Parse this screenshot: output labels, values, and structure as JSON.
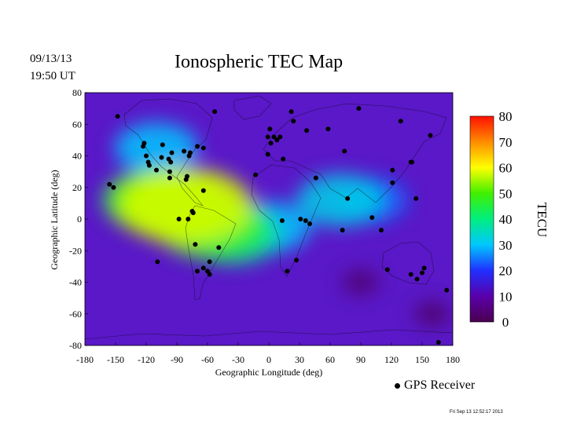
{
  "header": {
    "date": "09/13/13",
    "time": "19:50 UT",
    "title": "Ionospheric TEC Map"
  },
  "legend": {
    "label": "GPS Receiver"
  },
  "footer": {
    "stamp": "Fri Sep 13 12:52:17 2013"
  },
  "chart_data": {
    "type": "heatmap",
    "title": "Ionospheric TEC Map",
    "xlabel": "Geographic Longitude (deg)",
    "ylabel": "Geographic Latitude (deg)",
    "xlim": [
      -180,
      180
    ],
    "ylim": [
      -80,
      80
    ],
    "x_ticks": [
      -180,
      -150,
      -120,
      -90,
      -60,
      -30,
      0,
      30,
      60,
      90,
      120,
      150,
      180
    ],
    "y_ticks": [
      80,
      60,
      40,
      20,
      0,
      -20,
      -40,
      -60,
      -80
    ],
    "colorbar": {
      "label": "TECU",
      "range": [
        0,
        80
      ],
      "ticks": [
        80,
        70,
        60,
        50,
        40,
        30,
        20,
        10,
        0
      ],
      "colors": [
        "#4a0050",
        "#5a00aa",
        "#2030ff",
        "#00c8ff",
        "#00ee80",
        "#40f000",
        "#ffff00",
        "#ff8c00",
        "#ff1000"
      ]
    },
    "tec_regions": [
      {
        "lon": -80,
        "lat": 8,
        "tec": 58
      },
      {
        "lon": -95,
        "lat": 10,
        "tec": 52
      },
      {
        "lon": -55,
        "lat": -5,
        "tec": 46
      },
      {
        "lon": -110,
        "lat": 12,
        "tec": 44
      },
      {
        "lon": -35,
        "lat": -10,
        "tec": 38
      },
      {
        "lon": 0,
        "lat": -5,
        "tec": 30
      },
      {
        "lon": 70,
        "lat": 12,
        "tec": 32
      },
      {
        "lon": -110,
        "lat": 45,
        "tec": 30
      },
      {
        "lon": 100,
        "lat": 12,
        "tec": 24
      },
      {
        "lon": 90,
        "lat": -40,
        "tec": 3
      },
      {
        "lon": 160,
        "lat": -60,
        "tec": 2
      }
    ],
    "receivers": [
      {
        "lon": -148,
        "lat": 65
      },
      {
        "lon": -156,
        "lat": 22
      },
      {
        "lon": -152,
        "lat": 20
      },
      {
        "lon": -122,
        "lat": 48
      },
      {
        "lon": -123,
        "lat": 46
      },
      {
        "lon": -120,
        "lat": 40
      },
      {
        "lon": -118,
        "lat": 36
      },
      {
        "lon": -117,
        "lat": 34
      },
      {
        "lon": -104,
        "lat": 47
      },
      {
        "lon": -105,
        "lat": 39
      },
      {
        "lon": -98,
        "lat": 38
      },
      {
        "lon": -95,
        "lat": 42
      },
      {
        "lon": -96,
        "lat": 36
      },
      {
        "lon": -97,
        "lat": 30
      },
      {
        "lon": -97,
        "lat": 26
      },
      {
        "lon": -83,
        "lat": 43
      },
      {
        "lon": -78,
        "lat": 40
      },
      {
        "lon": -77,
        "lat": 42
      },
      {
        "lon": -70,
        "lat": 46
      },
      {
        "lon": -64,
        "lat": 45
      },
      {
        "lon": -80,
        "lat": 27
      },
      {
        "lon": -81,
        "lat": 25
      },
      {
        "lon": -64,
        "lat": 18
      },
      {
        "lon": -110,
        "lat": 31
      },
      {
        "lon": -88,
        "lat": 0
      },
      {
        "lon": -79,
        "lat": 0
      },
      {
        "lon": -75,
        "lat": 5
      },
      {
        "lon": -74,
        "lat": 4
      },
      {
        "lon": -72,
        "lat": -16
      },
      {
        "lon": -49,
        "lat": -18
      },
      {
        "lon": -58,
        "lat": -27
      },
      {
        "lon": -70,
        "lat": -33
      },
      {
        "lon": -64,
        "lat": -31
      },
      {
        "lon": -60,
        "lat": -33
      },
      {
        "lon": -58,
        "lat": -35
      },
      {
        "lon": -109,
        "lat": -27
      },
      {
        "lon": -53,
        "lat": 68
      },
      {
        "lon": -13,
        "lat": 28
      },
      {
        "lon": -1,
        "lat": 52
      },
      {
        "lon": 2,
        "lat": 48
      },
      {
        "lon": 5,
        "lat": 52
      },
      {
        "lon": 8,
        "lat": 50
      },
      {
        "lon": 11,
        "lat": 52
      },
      {
        "lon": 1,
        "lat": 57
      },
      {
        "lon": -1,
        "lat": 41
      },
      {
        "lon": 14,
        "lat": 38
      },
      {
        "lon": 22,
        "lat": 68
      },
      {
        "lon": 24,
        "lat": 62
      },
      {
        "lon": 37,
        "lat": 56
      },
      {
        "lon": 58,
        "lat": 57
      },
      {
        "lon": 74,
        "lat": 43
      },
      {
        "lon": 88,
        "lat": 70
      },
      {
        "lon": 129,
        "lat": 62
      },
      {
        "lon": 158,
        "lat": 53
      },
      {
        "lon": 140,
        "lat": 36
      },
      {
        "lon": 139,
        "lat": 36
      },
      {
        "lon": 121,
        "lat": 31
      },
      {
        "lon": 121,
        "lat": 23
      },
      {
        "lon": 144,
        "lat": 13
      },
      {
        "lon": 101,
        "lat": 1
      },
      {
        "lon": 110,
        "lat": -7
      },
      {
        "lon": 116,
        "lat": -32
      },
      {
        "lon": 139,
        "lat": -35
      },
      {
        "lon": 145,
        "lat": -38
      },
      {
        "lon": 150,
        "lat": -34
      },
      {
        "lon": 152,
        "lat": -31
      },
      {
        "lon": 174,
        "lat": -45
      },
      {
        "lon": 166,
        "lat": -78
      },
      {
        "lon": 77,
        "lat": 13
      },
      {
        "lon": 46,
        "lat": 26
      },
      {
        "lon": 36,
        "lat": -1
      },
      {
        "lon": 31,
        "lat": 0
      },
      {
        "lon": 40,
        "lat": -3
      },
      {
        "lon": 18,
        "lat": -33
      },
      {
        "lon": 27,
        "lat": -26
      },
      {
        "lon": 72,
        "lat": -7
      },
      {
        "lon": 13,
        "lat": -1
      }
    ]
  }
}
